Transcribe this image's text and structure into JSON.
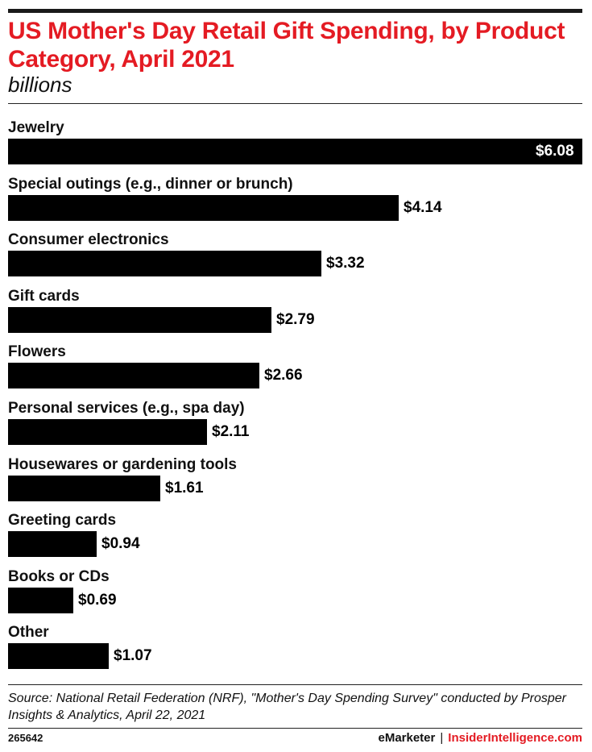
{
  "header": {
    "title": "US Mother's Day Retail Gift Spending, by Product Category, April 2021",
    "subtitle": "billions"
  },
  "chart_data": {
    "type": "bar",
    "orientation": "horizontal",
    "title": "US Mother's Day Retail Gift Spending, by Product Category, April 2021",
    "subtitle": "billions",
    "xlim": [
      0,
      6.08
    ],
    "grid": false,
    "legend": "none",
    "categories": [
      "Jewelry",
      "Special outings (e.g., dinner or brunch)",
      "Consumer electronics",
      "Gift cards",
      "Flowers",
      "Personal services (e.g., spa day)",
      "Housewares or gardening tools",
      "Greeting cards",
      "Books or CDs",
      "Other"
    ],
    "values": [
      6.08,
      4.14,
      3.32,
      2.79,
      2.66,
      2.11,
      1.61,
      0.94,
      0.69,
      1.07
    ],
    "value_labels": [
      "$6.08",
      "$4.14",
      "$3.32",
      "$2.79",
      "$2.66",
      "$2.11",
      "$1.61",
      "$0.94",
      "$0.69",
      "$1.07"
    ],
    "bar_color": "#000000"
  },
  "footer": {
    "source": "Source: National Retail Federation (NRF), \"Mother's Day Spending Survey\" conducted by Prosper Insights & Analytics, April 22, 2021",
    "chart_id": "265642",
    "brand_primary": "eMarketer",
    "brand_separator": "|",
    "brand_secondary": "InsiderIntelligence.com"
  },
  "colors": {
    "title": "#e41b23",
    "bar": "#000000",
    "brand_accent": "#e41b23"
  }
}
